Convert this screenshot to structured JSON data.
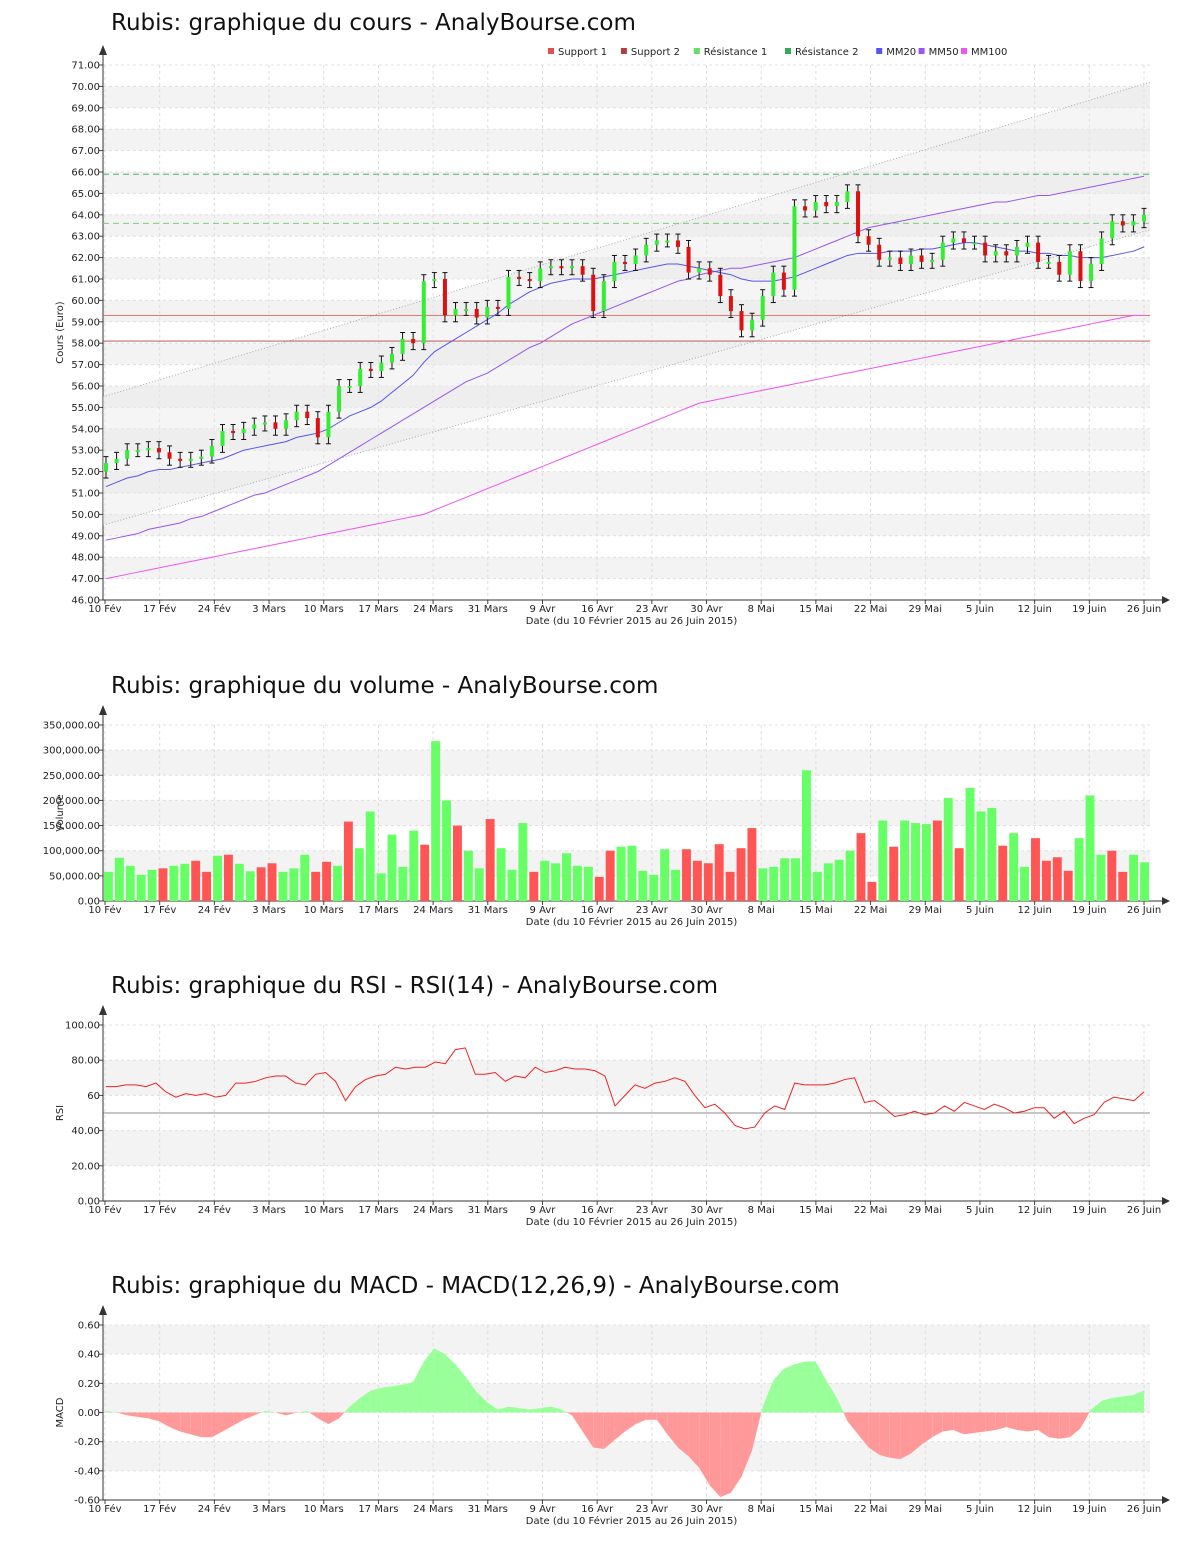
{
  "chart_data": [
    {
      "type": "candlestick",
      "title": "Rubis: graphique du cours - AnalyBourse.com",
      "ylabel": "Cours (Euro)",
      "xlabel": "Date (du 10 Février 2015 au 26 Juin 2015)",
      "ylim": [
        46,
        71
      ],
      "yticks": [
        "46.00",
        "47.00",
        "48.00",
        "49.00",
        "50.00",
        "51.00",
        "52.00",
        "53.00",
        "54.00",
        "55.00",
        "56.00",
        "57.00",
        "58.00",
        "59.00",
        "60.00",
        "61.00",
        "62.00",
        "63.00",
        "64.00",
        "65.00",
        "66.00",
        "67.00",
        "68.00",
        "69.00",
        "70.00",
        "71.00"
      ],
      "grid": true,
      "legend_position": "top-right",
      "legend": [
        {
          "label": "Support 1",
          "color": "#e05050"
        },
        {
          "label": "Support 2",
          "color": "#b04040"
        },
        {
          "label": "Résistance 1",
          "color": "#66dd66"
        },
        {
          "label": "Résistance 2",
          "color": "#33aa55"
        },
        {
          "label": "MM20",
          "color": "#5555ee"
        },
        {
          "label": "MM50",
          "color": "#9955ee"
        },
        {
          "label": "MM100",
          "color": "#ee55ee"
        }
      ],
      "support_levels": [
        59.3,
        58.1
      ],
      "resistance_levels": [
        63.6,
        65.9
      ],
      "trend_channel": {
        "upper": [
          55.5,
          70.2
        ],
        "lower": [
          49.5,
          63.3
        ]
      },
      "close": [
        52.4,
        52.6,
        53.0,
        53.0,
        53.1,
        52.9,
        52.6,
        52.5,
        52.6,
        52.7,
        53.2,
        53.9,
        53.8,
        54.0,
        54.2,
        54.3,
        54.0,
        54.4,
        54.8,
        54.5,
        53.6,
        54.8,
        56.0,
        56.0,
        56.8,
        56.7,
        57.1,
        57.5,
        58.2,
        58.0,
        60.9,
        61.0,
        59.3,
        59.6,
        59.6,
        59.2,
        59.7,
        59.6,
        61.1,
        61.0,
        60.9,
        61.5,
        61.6,
        61.5,
        61.6,
        61.2,
        59.5,
        60.9,
        61.8,
        61.7,
        62.1,
        62.6,
        62.8,
        62.8,
        62.5,
        61.3,
        61.5,
        61.2,
        60.2,
        59.5,
        58.6,
        59.1,
        60.2,
        61.3,
        60.5,
        64.4,
        64.2,
        64.6,
        64.4,
        64.6,
        65.1,
        63.0,
        62.6,
        61.9,
        62.0,
        61.7,
        62.1,
        61.8,
        61.9,
        62.7,
        62.9,
        62.7,
        62.7,
        62.1,
        62.3,
        62.1,
        62.5,
        62.7,
        61.8,
        61.8,
        61.2,
        62.3,
        60.9,
        61.7,
        62.9,
        63.7,
        63.5,
        63.7,
        64.0
      ],
      "ma20": [
        51.3,
        51.5,
        51.7,
        51.8,
        52.0,
        52.1,
        52.1,
        52.2,
        52.3,
        52.4,
        52.5,
        52.6,
        52.8,
        53.0,
        53.1,
        53.2,
        53.3,
        53.4,
        53.6,
        53.7,
        53.8,
        54.0,
        54.3,
        54.6,
        54.8,
        55.0,
        55.3,
        55.7,
        56.1,
        56.5,
        57.1,
        57.6,
        57.9,
        58.2,
        58.5,
        58.8,
        59.1,
        59.4,
        59.8,
        60.1,
        60.4,
        60.6,
        60.8,
        60.9,
        61.0,
        61.0,
        61.0,
        61.1,
        61.2,
        61.3,
        61.4,
        61.5,
        61.6,
        61.7,
        61.7,
        61.6,
        61.5,
        61.4,
        61.3,
        61.2,
        61.0,
        60.9,
        60.9,
        60.9,
        61.0,
        61.1,
        61.3,
        61.5,
        61.7,
        61.9,
        62.1,
        62.2,
        62.2,
        62.2,
        62.3,
        62.3,
        62.3,
        62.4,
        62.4,
        62.5,
        62.6,
        62.7,
        62.7,
        62.6,
        62.5,
        62.4,
        62.3,
        62.3,
        62.2,
        62.2,
        62.1,
        62.1,
        62.0,
        62.0,
        62.0,
        62.1,
        62.2,
        62.3,
        62.5
      ],
      "ma50": [
        48.8,
        48.9,
        49.0,
        49.1,
        49.3,
        49.4,
        49.5,
        49.6,
        49.8,
        49.9,
        50.1,
        50.3,
        50.5,
        50.7,
        50.9,
        51.0,
        51.2,
        51.4,
        51.6,
        51.8,
        52.0,
        52.3,
        52.6,
        52.9,
        53.2,
        53.5,
        53.8,
        54.1,
        54.4,
        54.7,
        55.0,
        55.3,
        55.6,
        55.9,
        56.2,
        56.4,
        56.6,
        56.9,
        57.2,
        57.5,
        57.8,
        58.0,
        58.3,
        58.6,
        58.9,
        59.1,
        59.3,
        59.5,
        59.7,
        59.9,
        60.1,
        60.3,
        60.5,
        60.7,
        60.9,
        61.0,
        61.2,
        61.3,
        61.4,
        61.5,
        61.5,
        61.6,
        61.7,
        61.8,
        61.9,
        62.0,
        62.2,
        62.4,
        62.6,
        62.8,
        63.0,
        63.2,
        63.4,
        63.5,
        63.6,
        63.7,
        63.8,
        63.9,
        64.0,
        64.1,
        64.2,
        64.3,
        64.4,
        64.5,
        64.6,
        64.6,
        64.7,
        64.8,
        64.9,
        64.9,
        65.0,
        65.1,
        65.2,
        65.3,
        65.4,
        65.5,
        65.6,
        65.7,
        65.8
      ],
      "ma100": [
        47.0,
        47.1,
        47.2,
        47.3,
        47.4,
        47.5,
        47.6,
        47.7,
        47.8,
        47.9,
        48.0,
        48.1,
        48.2,
        48.3,
        48.4,
        48.5,
        48.6,
        48.7,
        48.8,
        48.9,
        49.0,
        49.1,
        49.2,
        49.3,
        49.4,
        49.5,
        49.6,
        49.7,
        49.8,
        49.9,
        50.0,
        50.2,
        50.4,
        50.6,
        50.8,
        51.0,
        51.2,
        51.4,
        51.6,
        51.8,
        52.0,
        52.2,
        52.4,
        52.6,
        52.8,
        53.0,
        53.2,
        53.4,
        53.6,
        53.8,
        54.0,
        54.2,
        54.4,
        54.6,
        54.8,
        55.0,
        55.2,
        55.3,
        55.4,
        55.5,
        55.6,
        55.7,
        55.8,
        55.9,
        56.0,
        56.1,
        56.2,
        56.3,
        56.4,
        56.5,
        56.6,
        56.7,
        56.8,
        56.9,
        57.0,
        57.1,
        57.2,
        57.3,
        57.4,
        57.5,
        57.6,
        57.7,
        57.8,
        57.9,
        58.0,
        58.1,
        58.2,
        58.3,
        58.4,
        58.5,
        58.6,
        58.7,
        58.8,
        58.9,
        59.0,
        59.1,
        59.2,
        59.3,
        59.3
      ]
    },
    {
      "type": "bar",
      "title": "Rubis: graphique du volume - AnalyBourse.com",
      "ylabel": "Volume",
      "xlabel": "Date (du 10 Février 2015 au 26 Juin 2015)",
      "ylim": [
        0,
        350000
      ],
      "yticks": [
        "0.00",
        "50,000.00",
        "100,000.00",
        "150,000.00",
        "200,000.00",
        "250,000.00",
        "300,000.00",
        "350,000.00"
      ],
      "grid": true,
      "values": [
        58000,
        86000,
        70000,
        52000,
        62000,
        65000,
        70000,
        74000,
        80000,
        58000,
        90000,
        92000,
        74000,
        59000,
        67000,
        75000,
        58000,
        65000,
        92000,
        58000,
        78000,
        70000,
        158000,
        105000,
        178000,
        55000,
        132000,
        68000,
        140000,
        112000,
        318000,
        200000,
        150000,
        100000,
        65000,
        163000,
        105000,
        62000,
        155000,
        58000,
        80000,
        75000,
        95000,
        70000,
        68000,
        48000,
        100000,
        108000,
        110000,
        60000,
        52000,
        103000,
        62000,
        103000,
        80000,
        75000,
        113000,
        58000,
        105000,
        145000,
        65000,
        68000,
        85000,
        85000,
        260000,
        58000,
        75000,
        82000,
        100000,
        135000,
        38000,
        160000,
        108000,
        160000,
        155000,
        153000,
        160000,
        205000,
        105000,
        225000,
        178000,
        185000,
        110000,
        135000,
        68000,
        125000,
        80000,
        87000,
        60000,
        125000,
        210000,
        92000,
        100000,
        58000,
        92000,
        77000
      ],
      "up": [
        true,
        true,
        true,
        true,
        true,
        false,
        true,
        true,
        false,
        false,
        true,
        false,
        true,
        true,
        false,
        false,
        true,
        true,
        true,
        false,
        false,
        true,
        false,
        true,
        true,
        true,
        true,
        true,
        true,
        false,
        true,
        true,
        false,
        true,
        true,
        false,
        true,
        true,
        true,
        false,
        true,
        true,
        true,
        true,
        true,
        false,
        false,
        true,
        true,
        true,
        true,
        true,
        true,
        false,
        false,
        false,
        false,
        false,
        false,
        false,
        true,
        true,
        true,
        true,
        true,
        true,
        true,
        true,
        true,
        false,
        false,
        true,
        false,
        true,
        true,
        true,
        false,
        true,
        false,
        true,
        true,
        true,
        false,
        true,
        true,
        false,
        false,
        false,
        false,
        true,
        true,
        true,
        false,
        false,
        true,
        true
      ]
    },
    {
      "type": "line",
      "title": "Rubis: graphique du RSI - RSI(14) - AnalyBourse.com",
      "ylabel": "RSI",
      "xlabel": "Date (du 10 Février 2015 au 26 Juin 2015)",
      "ylim": [
        0,
        100
      ],
      "yticks": [
        "0.00",
        "20.00",
        "40.00",
        "60",
        "80.00",
        "100.00"
      ],
      "grid": true,
      "reference_line": 50,
      "values": [
        65,
        65,
        66,
        66,
        65,
        67,
        62,
        59,
        61,
        60,
        61,
        59,
        60,
        67,
        67,
        68,
        70,
        71,
        71,
        67,
        66,
        72,
        73,
        68,
        57,
        65,
        69,
        71,
        72,
        76,
        75,
        76,
        76,
        79,
        78,
        86,
        87,
        72,
        72,
        73,
        68,
        71,
        70,
        76,
        73,
        74,
        76,
        75,
        75,
        74,
        71,
        54,
        60,
        66,
        64,
        67,
        68,
        70,
        68,
        60,
        53,
        55,
        50,
        43,
        41,
        42,
        50,
        54,
        52,
        67,
        66,
        66,
        66,
        67,
        69,
        70,
        56,
        57,
        53,
        48,
        49,
        51,
        49,
        50,
        54,
        51,
        56,
        54,
        52,
        55,
        53,
        50,
        51,
        53,
        53,
        47,
        51,
        44,
        47,
        49,
        56,
        59,
        58,
        57,
        62
      ]
    },
    {
      "type": "area",
      "title": "Rubis: graphique du MACD - MACD(12,26,9) - AnalyBourse.com",
      "ylabel": "MACD",
      "xlabel": "Date (du 10 Février 2015 au 26 Juin 2015)",
      "ylim": [
        -0.6,
        0.6
      ],
      "yticks": [
        "-0.60",
        "-0.40",
        "-0.20",
        "0.00",
        "0.20",
        "0.40",
        "0.60"
      ],
      "grid": true,
      "positive_color": "#99ff99",
      "negative_color": "#ff9999",
      "values": [
        0.01,
        0.0,
        -0.02,
        -0.03,
        -0.04,
        -0.06,
        -0.1,
        -0.13,
        -0.15,
        -0.17,
        -0.17,
        -0.13,
        -0.09,
        -0.05,
        -0.02,
        0.01,
        0.0,
        -0.02,
        0.0,
        0.01,
        -0.04,
        -0.08,
        -0.04,
        0.04,
        0.1,
        0.15,
        0.17,
        0.18,
        0.19,
        0.21,
        0.35,
        0.44,
        0.4,
        0.33,
        0.24,
        0.14,
        0.07,
        0.02,
        0.04,
        0.03,
        0.02,
        0.03,
        0.04,
        0.02,
        -0.02,
        -0.13,
        -0.24,
        -0.25,
        -0.19,
        -0.13,
        -0.08,
        -0.05,
        -0.05,
        -0.15,
        -0.24,
        -0.3,
        -0.38,
        -0.5,
        -0.58,
        -0.55,
        -0.44,
        -0.26,
        0.04,
        0.22,
        0.3,
        0.33,
        0.35,
        0.35,
        0.22,
        0.1,
        -0.06,
        -0.15,
        -0.24,
        -0.29,
        -0.31,
        -0.32,
        -0.28,
        -0.22,
        -0.17,
        -0.13,
        -0.12,
        -0.15,
        -0.14,
        -0.13,
        -0.12,
        -0.1,
        -0.12,
        -0.13,
        -0.12,
        -0.17,
        -0.18,
        -0.17,
        -0.11,
        0.02,
        0.08,
        0.1,
        0.11,
        0.12,
        0.15
      ]
    }
  ],
  "x_axis_labels": [
    "10 Fév",
    "17 Fév",
    "24 Fév",
    "3 Mars",
    "10 Mars",
    "17 Mars",
    "24 Mars",
    "31 Mars",
    "9 Avr",
    "16 Avr",
    "23 Avr",
    "30 Avr",
    "8 Mai",
    "15 Mai",
    "22 Mai",
    "29 Mai",
    "5 Juin",
    "12 Juin",
    "19 Juin",
    "26 Juin"
  ]
}
